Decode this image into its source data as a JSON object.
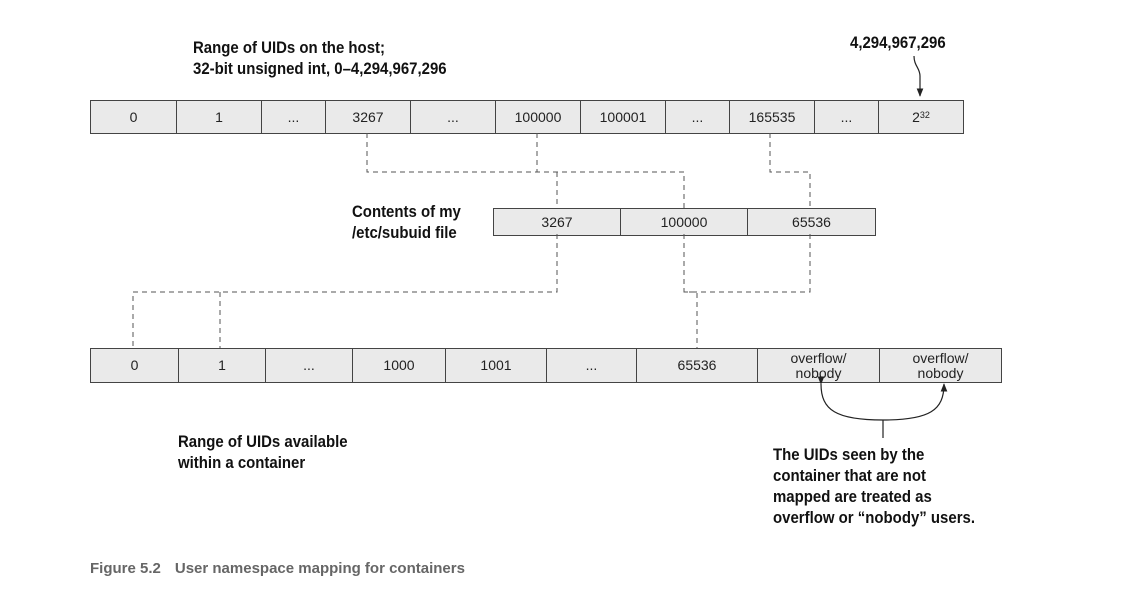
{
  "host": {
    "label_line1": "Range of UIDs on the host;",
    "label_line2": "32-bit unsigned int, 0–4,294,967,296",
    "max_callout": "4,294,967,296",
    "cells": [
      "0",
      "1",
      "...",
      "3267",
      "...",
      "100000",
      "100001",
      "...",
      "165535",
      "...",
      "2"
    ],
    "last_base": "2",
    "last_exponent": "32"
  },
  "subuid": {
    "label_line1": "Contents of my",
    "label_line2": "/etc/subuid file",
    "cells": [
      "3267",
      "100000",
      "65536"
    ]
  },
  "container": {
    "label_line1": "Range of UIDs available",
    "label_line2": "within a container",
    "cells": [
      "0",
      "1",
      "...",
      "1000",
      "1001",
      "...",
      "65536"
    ],
    "overflow_cells": [
      {
        "line1": "overflow/",
        "line2": "nobody"
      },
      {
        "line1": "overflow/",
        "line2": "nobody"
      }
    ]
  },
  "note": {
    "line1": "The UIDs seen by the",
    "line2": "container that are not",
    "line3": "mapped are treated as",
    "line4": "overflow or “nobody” users."
  },
  "caption": {
    "number": "Figure 5.2",
    "text": "User namespace mapping for containers"
  }
}
